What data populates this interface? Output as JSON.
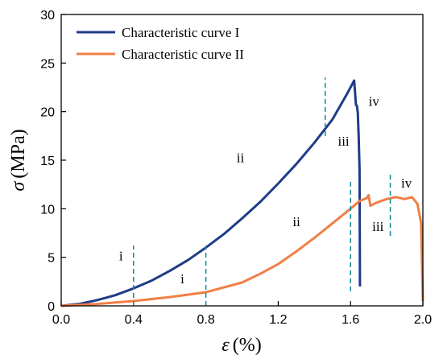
{
  "chart_data": {
    "type": "line",
    "xlabel": {
      "symbol": "ε",
      "unit": "(%)"
    },
    "ylabel": {
      "symbol": "σ",
      "unit": "(MPa)"
    },
    "xlim": [
      0,
      2.0
    ],
    "ylim": [
      0,
      30
    ],
    "xticks": [
      0.0,
      0.4,
      0.8,
      1.2,
      1.6,
      2.0
    ],
    "xtick_labels": [
      "0.0",
      "0.4",
      "0.8",
      "1.2",
      "1.6",
      "2.0"
    ],
    "yticks": [
      0,
      5,
      10,
      15,
      20,
      25,
      30
    ],
    "ytick_labels": [
      "0",
      "5",
      "10",
      "15",
      "20",
      "25",
      "30"
    ],
    "legend_position": "top-left",
    "series": [
      {
        "name": "Characteristic curve I",
        "color": "#1f3c88",
        "points": [
          [
            0,
            0
          ],
          [
            0.1,
            0.2
          ],
          [
            0.2,
            0.6
          ],
          [
            0.3,
            1.1
          ],
          [
            0.4,
            1.8
          ],
          [
            0.5,
            2.6
          ],
          [
            0.6,
            3.6
          ],
          [
            0.7,
            4.7
          ],
          [
            0.8,
            6.0
          ],
          [
            0.9,
            7.4
          ],
          [
            1.0,
            9.0
          ],
          [
            1.1,
            10.7
          ],
          [
            1.2,
            12.6
          ],
          [
            1.3,
            14.6
          ],
          [
            1.4,
            16.8
          ],
          [
            1.5,
            19.2
          ],
          [
            1.58,
            21.8
          ],
          [
            1.62,
            23.2
          ],
          [
            1.625,
            22.0
          ],
          [
            1.63,
            20.7
          ],
          [
            1.635,
            20.6
          ],
          [
            1.64,
            19.9
          ],
          [
            1.645,
            17.5
          ],
          [
            1.65,
            14.0
          ],
          [
            1.652,
            2.0
          ]
        ]
      },
      {
        "name": "Characteristic curve II",
        "color": "#f07f45",
        "points": [
          [
            0,
            0
          ],
          [
            0.2,
            0.2
          ],
          [
            0.4,
            0.5
          ],
          [
            0.6,
            0.9
          ],
          [
            0.8,
            1.4
          ],
          [
            1.0,
            2.4
          ],
          [
            1.1,
            3.3
          ],
          [
            1.2,
            4.3
          ],
          [
            1.3,
            5.6
          ],
          [
            1.4,
            7.0
          ],
          [
            1.5,
            8.5
          ],
          [
            1.6,
            10.0
          ],
          [
            1.65,
            10.8
          ],
          [
            1.69,
            11.1
          ],
          [
            1.7,
            11.4
          ],
          [
            1.71,
            10.3
          ],
          [
            1.74,
            10.6
          ],
          [
            1.8,
            11.0
          ],
          [
            1.85,
            11.2
          ],
          [
            1.9,
            11.0
          ],
          [
            1.94,
            11.2
          ],
          [
            1.97,
            10.5
          ],
          [
            1.99,
            8.5
          ],
          [
            2.0,
            0.5
          ]
        ]
      }
    ],
    "stage_dividers": [
      {
        "series": "I",
        "x": 0.4,
        "y_range": [
          0,
          6.2
        ]
      },
      {
        "series": "I",
        "x": 1.46,
        "y_range": [
          17.5,
          23.5
        ]
      },
      {
        "series": "II",
        "x": 0.8,
        "y_range": [
          0,
          6.2
        ]
      },
      {
        "series": "II",
        "x": 1.6,
        "y_range": [
          1.5,
          12.8
        ]
      },
      {
        "series": "II",
        "x": 1.82,
        "y_range": [
          7.2,
          13.5
        ]
      }
    ],
    "divider_color": "#1a8c9c",
    "annotations": [
      {
        "text": "i",
        "x": 0.32,
        "y": 4.7
      },
      {
        "text": "ii",
        "x": 0.97,
        "y": 14.8
      },
      {
        "text": "iii",
        "x": 1.53,
        "y": 16.5
      },
      {
        "text": "iv",
        "x": 1.7,
        "y": 20.6
      },
      {
        "text": "i",
        "x": 0.66,
        "y": 2.3
      },
      {
        "text": "ii",
        "x": 1.28,
        "y": 8.2
      },
      {
        "text": "iii",
        "x": 1.72,
        "y": 7.7
      },
      {
        "text": "iv",
        "x": 1.88,
        "y": 12.2
      }
    ]
  }
}
